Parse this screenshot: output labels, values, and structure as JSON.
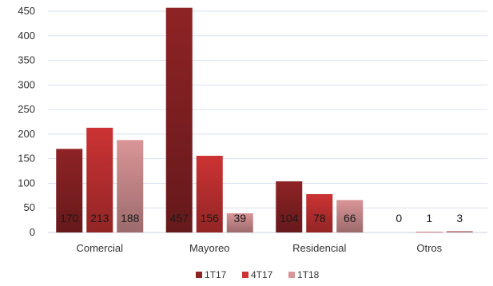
{
  "chart_data": {
    "type": "bar",
    "categories": [
      "Comercial",
      "Mayoreo",
      "Residencial",
      "Otros"
    ],
    "series": [
      {
        "name": "1T17",
        "values": [
          170,
          457,
          104,
          0
        ],
        "color": "#8e2325"
      },
      {
        "name": "4T17",
        "values": [
          213,
          156,
          78,
          1
        ],
        "color": "#cc3334"
      },
      {
        "name": "1T18",
        "values": [
          188,
          39,
          66,
          3
        ],
        "color": "#d99597"
      }
    ],
    "ylim": [
      0,
      450
    ],
    "yticks": [
      0,
      50,
      100,
      150,
      200,
      250,
      300,
      350,
      400,
      450
    ],
    "grid": true,
    "legend_position": "bottom"
  }
}
